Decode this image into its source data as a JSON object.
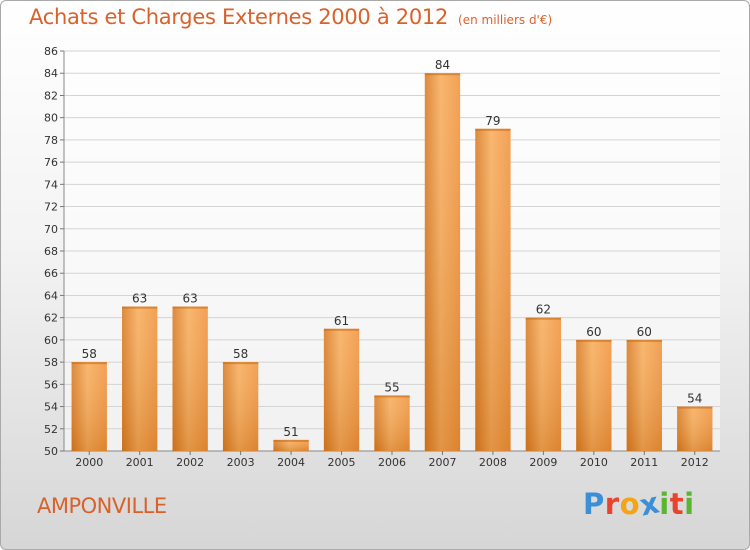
{
  "header": {
    "title": "Achats et Charges Externes 2000 à 2012",
    "unit": "(en milliers d'€)"
  },
  "commune": "AMPONVILLE",
  "logo": {
    "text": "Proxiti",
    "letters": [
      "P",
      "r",
      "o",
      "x",
      "i",
      "t",
      "i"
    ],
    "colors": [
      "#3a8fd6",
      "#e8432e",
      "#f4a417",
      "#3a8fd6",
      "#5cb531",
      "#e8432e",
      "#5cb531"
    ]
  },
  "chart_data": {
    "type": "bar",
    "title": "Achats et Charges Externes 2000 à 2012",
    "subtitle": "(en milliers d'€)",
    "xlabel": "",
    "ylabel": "",
    "categories": [
      "2000",
      "2001",
      "2002",
      "2003",
      "2004",
      "2005",
      "2006",
      "2007",
      "2008",
      "2009",
      "2010",
      "2011",
      "2012"
    ],
    "values": [
      58,
      63,
      63,
      58,
      51,
      61,
      55,
      84,
      79,
      62,
      60,
      60,
      54
    ],
    "ylim": [
      50,
      86
    ],
    "yticks": [
      50,
      52,
      54,
      56,
      58,
      60,
      62,
      64,
      66,
      68,
      70,
      72,
      74,
      76,
      78,
      80,
      82,
      84,
      86
    ],
    "grid": true,
    "bar_color": "#f0943e",
    "bar_color_light": "#f7ad5c",
    "bar_color_dark": "#d97a22"
  }
}
